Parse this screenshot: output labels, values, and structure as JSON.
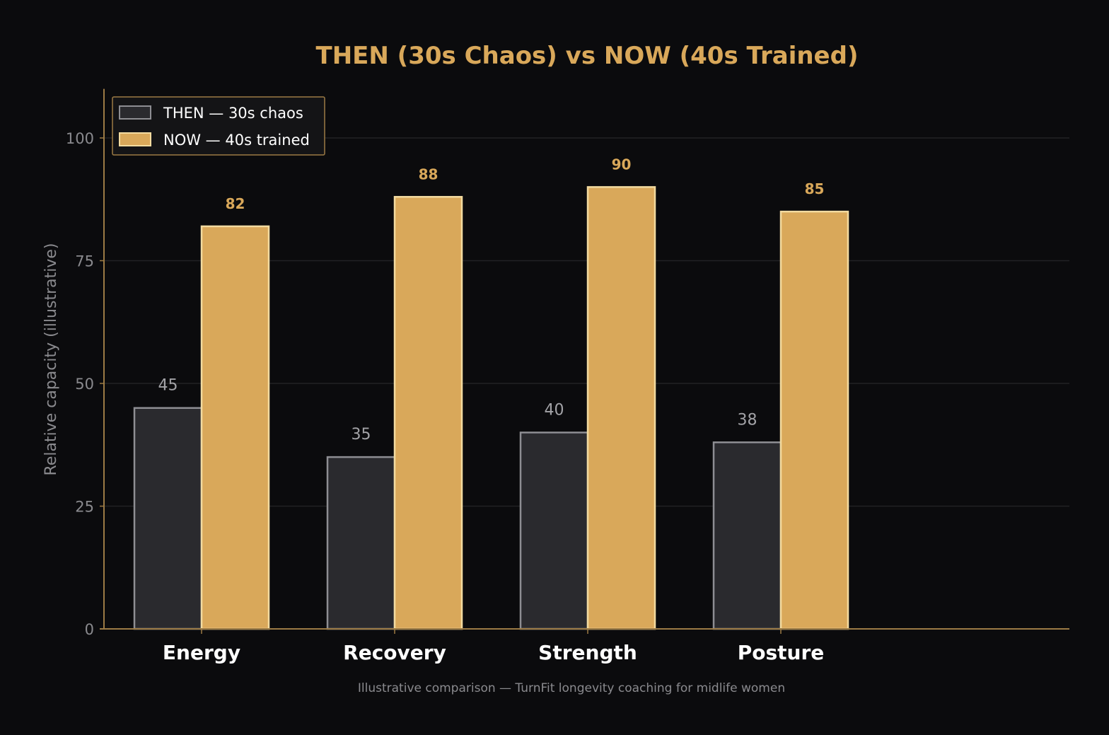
{
  "chart_data": {
    "type": "bar",
    "title": "THEN (30s Chaos) vs NOW (40s Trained)",
    "ylabel": "Relative capacity (illustrative)",
    "xlabel": "",
    "ylim": [
      0,
      110
    ],
    "yticks": [
      "0",
      "25",
      "50",
      "75",
      "100"
    ],
    "categories": [
      "Energy",
      "Recovery",
      "Strength",
      "Posture"
    ],
    "series": [
      {
        "name": "THEN — 30s chaos",
        "values": [
          45,
          35,
          40,
          38
        ],
        "color": "#2a2a2e",
        "edge": "#8e8e93",
        "label_color": "#a3a3a7"
      },
      {
        "name": "NOW — 40s trained",
        "values": [
          82,
          88,
          90,
          85
        ],
        "color": "#d9a85a",
        "edge": "#f3dba0",
        "label_color": "#d9a85a"
      }
    ],
    "value_labels": {
      "then": [
        "45",
        "35",
        "40",
        "38"
      ],
      "now": [
        "82",
        "88",
        "90",
        "85"
      ]
    },
    "legend_position": "top-left",
    "grid": true,
    "footnote": "Illustrative comparison — TurnFit longevity coaching for midlife women",
    "colors": {
      "background": "#0b0b0d",
      "accent": "#d9a85a",
      "axis": "#9c7b45",
      "grid": "#222225",
      "legend_bg": "#141416"
    }
  }
}
